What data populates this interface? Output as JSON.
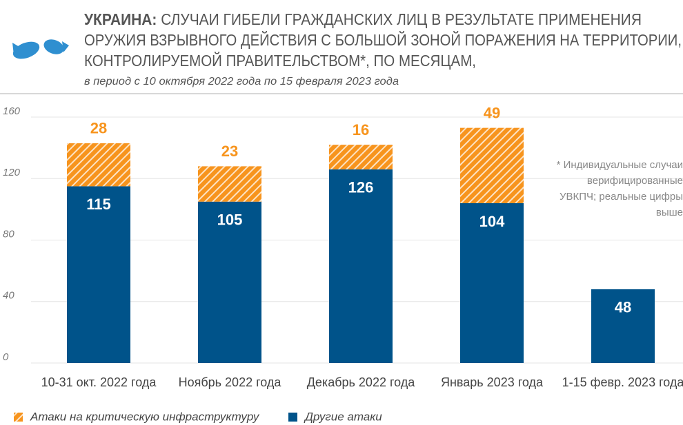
{
  "chart_data": {
    "type": "bar",
    "stacked": true,
    "title_lead": "УКРАИНА:",
    "title_lines": [
      " СЛУЧАИ ГИБЕЛИ ГРАЖДАНСКИХ ЛИЦ В РЕЗУЛЬТАТЕ ПРИМЕНЕНИЯ",
      "ОРУЖИЯ ВЗРЫВНОГО ДЕЙСТВИЯ С БОЛЬШОЙ ЗОНОЙ ПОРАЖЕНИЯ НА ТЕРРИТОРИИ,",
      "КОНТРОЛИРУЕМОЙ ПРАВИТЕЛЬСТВОМ*, ПО МЕСЯЦАМ,"
    ],
    "subtitle": "в период с 10 октября 2022 года по 15 февраля 2023 года",
    "note": [
      "* Индивидуальные случаи",
      "верифицированные",
      "УВКПЧ; реальные цифры",
      "выше"
    ],
    "categories": [
      "10-31 окт. 2022 года",
      "Ноябрь 2022 года",
      "Декабрь 2022 года",
      "Январь 2023 года",
      "1-15 февр. 2023 года"
    ],
    "series": [
      {
        "name": "Другие атаки",
        "color": "#00538a",
        "values": [
          115,
          105,
          126,
          104,
          48
        ]
      },
      {
        "name": "Атаки на критическую инфраструктуру",
        "color": "#f7941d",
        "values": [
          28,
          23,
          16,
          49,
          null
        ]
      }
    ],
    "ylim": [
      0,
      160
    ],
    "yticks": [
      0,
      40,
      80,
      120,
      160
    ],
    "grid": true
  }
}
